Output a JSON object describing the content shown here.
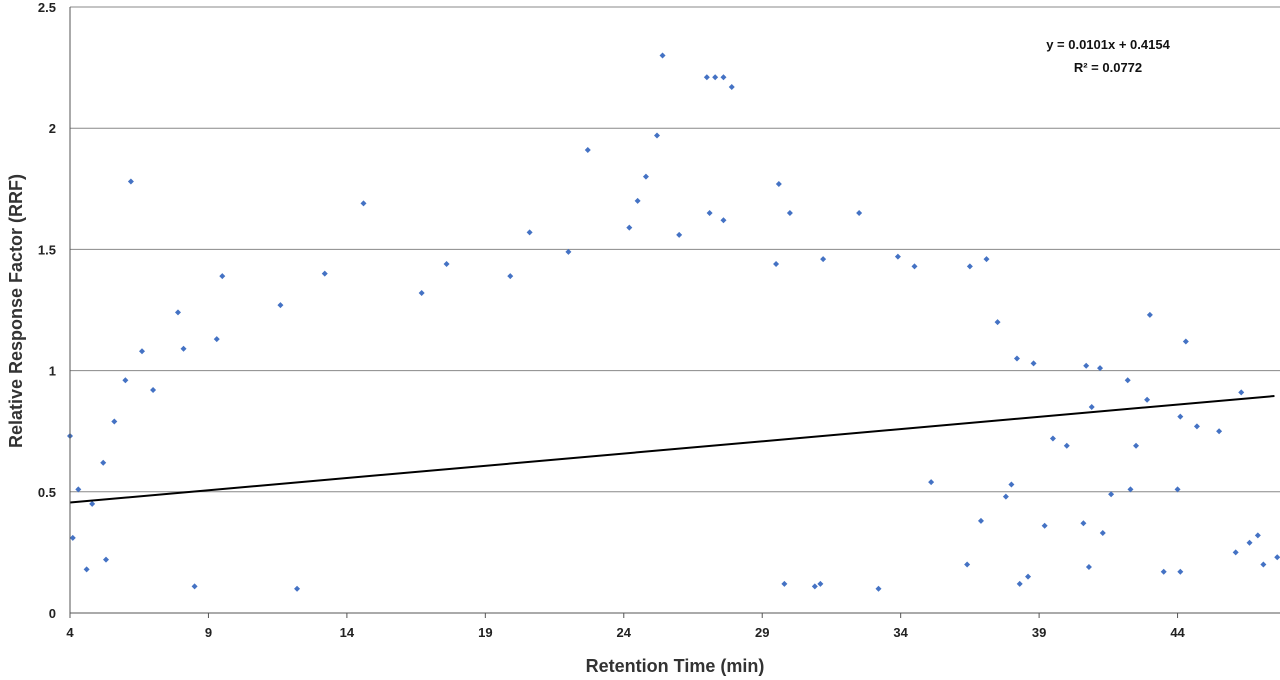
{
  "chart_data": {
    "type": "scatter",
    "xlabel": "Retention Time (min)",
    "ylabel": "Relative Response Factor (RRF)",
    "xlim": [
      4,
      47.7
    ],
    "ylim": [
      0,
      2.5
    ],
    "x_ticks": [
      "4",
      "9",
      "14",
      "19",
      "24",
      "29",
      "34",
      "39",
      "44"
    ],
    "y_ticks": [
      "0",
      "0.5",
      "1",
      "1.5",
      "2",
      "2.5"
    ],
    "grid": "horizontal",
    "legend": "none",
    "marker_color": "#4472C4",
    "trendline": {
      "slope": 0.0101,
      "intercept": 0.4154,
      "equation": "y = 0.0101x + 0.4154",
      "r2_label": "R² = 0.0772",
      "color": "#000000"
    },
    "points": [
      [
        6.2,
        1.78
      ],
      [
        14.6,
        1.69
      ],
      [
        25.4,
        2.3
      ],
      [
        27.0,
        2.21
      ],
      [
        27.3,
        2.21
      ],
      [
        27.6,
        2.21
      ],
      [
        27.9,
        2.17
      ],
      [
        25.2,
        1.97
      ],
      [
        22.7,
        1.91
      ],
      [
        24.8,
        1.8
      ],
      [
        29.6,
        1.77
      ],
      [
        24.5,
        1.7
      ],
      [
        27.1,
        1.65
      ],
      [
        27.6,
        1.62
      ],
      [
        30.0,
        1.65
      ],
      [
        32.5,
        1.65
      ],
      [
        20.6,
        1.57
      ],
      [
        26.0,
        1.56
      ],
      [
        22.0,
        1.49
      ],
      [
        24.2,
        1.59
      ],
      [
        9.5,
        1.39
      ],
      [
        13.2,
        1.4
      ],
      [
        19.9,
        1.39
      ],
      [
        33.9,
        1.47
      ],
      [
        37.1,
        1.46
      ],
      [
        7.9,
        1.24
      ],
      [
        11.6,
        1.27
      ],
      [
        31.2,
        1.46
      ],
      [
        29.5,
        1.44
      ],
      [
        17.6,
        1.44
      ],
      [
        36.5,
        1.43
      ],
      [
        34.5,
        1.43
      ],
      [
        16.7,
        1.32
      ],
      [
        8.1,
        1.09
      ],
      [
        6.6,
        1.08
      ],
      [
        9.3,
        1.13
      ],
      [
        37.5,
        1.2
      ],
      [
        43.0,
        1.23
      ],
      [
        44.3,
        1.12
      ],
      [
        38.2,
        1.05
      ],
      [
        38.8,
        1.03
      ],
      [
        40.7,
        1.02
      ],
      [
        41.2,
        1.01
      ],
      [
        42.2,
        0.96
      ],
      [
        42.9,
        0.88
      ],
      [
        44.1,
        0.81
      ],
      [
        44.7,
        0.77
      ],
      [
        45.5,
        0.75
      ],
      [
        46.3,
        0.91
      ],
      [
        40.9,
        0.85
      ],
      [
        39.5,
        0.72
      ],
      [
        40.0,
        0.69
      ],
      [
        42.5,
        0.69
      ],
      [
        41.6,
        0.49
      ],
      [
        42.3,
        0.51
      ],
      [
        44.0,
        0.51
      ],
      [
        40.6,
        0.37
      ],
      [
        41.3,
        0.33
      ],
      [
        43.5,
        0.17
      ],
      [
        44.1,
        0.17
      ],
      [
        40.8,
        0.19
      ],
      [
        38.3,
        0.12
      ],
      [
        38.6,
        0.15
      ],
      [
        46.1,
        0.25
      ],
      [
        46.6,
        0.29
      ],
      [
        46.9,
        0.32
      ],
      [
        47.1,
        0.2
      ],
      [
        47.6,
        0.23
      ],
      [
        36.4,
        0.2
      ],
      [
        35.1,
        0.54
      ],
      [
        37.8,
        0.48
      ],
      [
        38.0,
        0.53
      ],
      [
        36.9,
        0.38
      ],
      [
        39.2,
        0.36
      ],
      [
        33.2,
        0.1
      ],
      [
        31.1,
        0.12
      ],
      [
        29.8,
        0.12
      ],
      [
        30.9,
        0.11
      ],
      [
        4.0,
        0.73
      ],
      [
        4.1,
        0.31
      ],
      [
        4.6,
        0.18
      ],
      [
        5.2,
        0.62
      ],
      [
        5.6,
        0.79
      ],
      [
        4.3,
        0.51
      ],
      [
        4.8,
        0.45
      ],
      [
        5.3,
        0.22
      ],
      [
        6.0,
        0.96
      ],
      [
        7.0,
        0.92
      ],
      [
        8.5,
        0.11
      ],
      [
        12.2,
        0.1
      ]
    ]
  }
}
